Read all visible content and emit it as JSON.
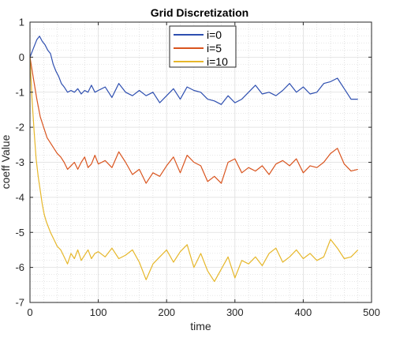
{
  "chart_data": {
    "type": "line",
    "title": "Grid Discretization",
    "xlabel": "time",
    "ylabel": "coeff Value",
    "xlim": [
      0,
      500
    ],
    "ylim": [
      -7,
      1
    ],
    "xticks": [
      0,
      100,
      200,
      300,
      400,
      500
    ],
    "yticks": [
      -7,
      -6,
      -5,
      -4,
      -3,
      -2,
      -1,
      0,
      1
    ],
    "grid": true,
    "minor_grid": true,
    "legend_position": "top-center",
    "series": [
      {
        "name": "i=0",
        "color": "#2e4fb0",
        "x": [
          0,
          5,
          10,
          14,
          18,
          22,
          26,
          30,
          34,
          38,
          42,
          46,
          50,
          55,
          60,
          65,
          70,
          75,
          80,
          85,
          90,
          95,
          100,
          110,
          120,
          130,
          140,
          150,
          160,
          170,
          180,
          190,
          200,
          210,
          220,
          230,
          240,
          250,
          260,
          270,
          280,
          290,
          300,
          310,
          320,
          330,
          340,
          350,
          360,
          370,
          380,
          390,
          400,
          410,
          420,
          430,
          440,
          450,
          460,
          470,
          480
        ],
        "y": [
          0,
          0.25,
          0.5,
          0.6,
          0.45,
          0.35,
          0.2,
          0.1,
          -0.2,
          -0.4,
          -0.55,
          -0.75,
          -0.85,
          -1.0,
          -0.95,
          -1.0,
          -0.9,
          -1.05,
          -0.95,
          -1.0,
          -0.8,
          -1.0,
          -0.95,
          -0.85,
          -1.15,
          -0.75,
          -1.0,
          -1.1,
          -0.95,
          -1.1,
          -1.0,
          -1.3,
          -1.1,
          -0.9,
          -1.2,
          -0.85,
          -0.95,
          -1.0,
          -1.2,
          -1.25,
          -1.35,
          -1.1,
          -1.3,
          -1.2,
          -1.0,
          -0.8,
          -1.05,
          -1.0,
          -1.1,
          -0.95,
          -0.75,
          -1.0,
          -0.85,
          -1.05,
          -1.0,
          -0.75,
          -0.7,
          -0.6,
          -0.9,
          -1.2,
          -1.2
        ]
      },
      {
        "name": "i=5",
        "color": "#d9541e",
        "x": [
          0,
          5,
          10,
          15,
          20,
          25,
          30,
          35,
          40,
          45,
          50,
          55,
          60,
          65,
          70,
          75,
          80,
          85,
          90,
          95,
          100,
          110,
          120,
          130,
          140,
          150,
          160,
          170,
          180,
          190,
          200,
          210,
          220,
          230,
          240,
          250,
          260,
          270,
          280,
          290,
          300,
          310,
          320,
          330,
          340,
          350,
          360,
          370,
          380,
          390,
          400,
          410,
          420,
          430,
          440,
          450,
          460,
          470,
          480
        ],
        "y": [
          0,
          -0.6,
          -1.2,
          -1.7,
          -2.0,
          -2.3,
          -2.45,
          -2.6,
          -2.75,
          -2.85,
          -3.0,
          -3.2,
          -3.1,
          -3.0,
          -3.2,
          -3.0,
          -2.85,
          -3.15,
          -3.05,
          -2.8,
          -3.05,
          -2.95,
          -3.15,
          -2.7,
          -3.0,
          -3.35,
          -3.2,
          -3.6,
          -3.3,
          -3.4,
          -3.1,
          -2.85,
          -3.3,
          -2.8,
          -3.0,
          -3.1,
          -3.55,
          -3.4,
          -3.6,
          -3.0,
          -2.9,
          -3.3,
          -3.15,
          -3.25,
          -3.1,
          -3.35,
          -3.05,
          -2.95,
          -3.1,
          -2.9,
          -3.3,
          -3.1,
          -3.15,
          -3.0,
          -2.75,
          -2.6,
          -3.05,
          -3.25,
          -3.2
        ]
      },
      {
        "name": "i=10",
        "color": "#e6b72a",
        "x": [
          0,
          3,
          6,
          9,
          12,
          15,
          18,
          21,
          24,
          27,
          30,
          35,
          40,
          45,
          50,
          55,
          60,
          65,
          70,
          75,
          80,
          85,
          90,
          95,
          100,
          110,
          120,
          130,
          140,
          150,
          160,
          170,
          180,
          190,
          200,
          210,
          220,
          230,
          240,
          250,
          260,
          270,
          280,
          290,
          300,
          310,
          320,
          330,
          340,
          350,
          360,
          370,
          380,
          390,
          400,
          410,
          420,
          430,
          440,
          450,
          460,
          470,
          480
        ],
        "y": [
          0,
          -1.2,
          -2.1,
          -2.9,
          -3.4,
          -3.8,
          -4.2,
          -4.5,
          -4.7,
          -4.85,
          -5.0,
          -5.2,
          -5.4,
          -5.5,
          -5.7,
          -5.9,
          -5.6,
          -5.75,
          -5.5,
          -5.8,
          -5.65,
          -5.5,
          -5.75,
          -5.6,
          -5.55,
          -5.7,
          -5.45,
          -5.75,
          -5.65,
          -5.5,
          -5.85,
          -6.35,
          -5.9,
          -5.7,
          -5.5,
          -5.85,
          -5.55,
          -5.35,
          -6.0,
          -5.6,
          -6.1,
          -6.4,
          -6.05,
          -5.7,
          -6.3,
          -5.8,
          -5.9,
          -5.7,
          -5.95,
          -5.6,
          -5.45,
          -5.85,
          -5.7,
          -5.5,
          -5.75,
          -5.6,
          -5.8,
          -5.7,
          -5.2,
          -5.45,
          -5.75,
          -5.7,
          -5.5
        ]
      }
    ]
  }
}
